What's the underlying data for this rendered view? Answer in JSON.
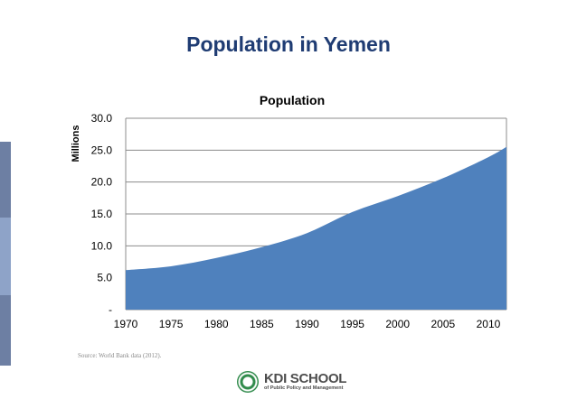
{
  "slide": {
    "title": "Population in Yemen",
    "source": "Source: World Bank data (2012).",
    "logo_name": "KDI SCHOOL",
    "logo_subtitle": "of Public Policy and Management"
  },
  "colors": {
    "title": "#1f3c73",
    "area": "#4f81bd",
    "side_bar_dark": "#6d7fa3",
    "side_bar_light": "#8ea3c8",
    "logo_green": "#2f8a4a"
  },
  "chart_data": {
    "type": "area",
    "title": "Population",
    "xlabel": "",
    "ylabel": "Millions",
    "xlim": [
      1970,
      2012
    ],
    "ylim": [
      0,
      30
    ],
    "grid": true,
    "legend": "none",
    "x_ticks": [
      "1970",
      "1975",
      "1980",
      "1985",
      "1990",
      "1995",
      "2000",
      "2005",
      "2010"
    ],
    "y_ticks": [
      "30.0",
      "25.0",
      "20.0",
      "15.0",
      "10.0",
      "5.0",
      "-"
    ],
    "x": [
      1970,
      1975,
      1980,
      1985,
      1990,
      1995,
      2000,
      2005,
      2010,
      2012
    ],
    "series": [
      {
        "values": [
          6.2,
          6.8,
          8.1,
          9.8,
          12.0,
          15.3,
          17.8,
          20.6,
          23.9,
          25.5
        ]
      }
    ]
  }
}
